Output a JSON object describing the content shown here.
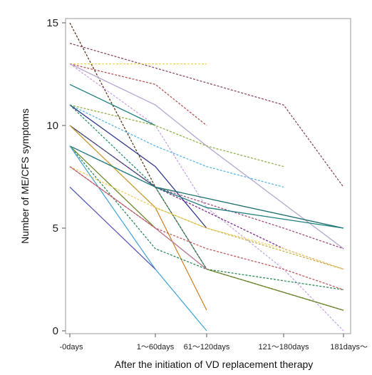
{
  "chart_data": {
    "type": "line",
    "title": "",
    "xlabel": "After the initiation of VD replacement therapy",
    "ylabel": "Number of ME/CFS symptoms",
    "categories": [
      "-0days",
      "1～60days",
      "61～120days",
      "121～180days",
      "181days～"
    ],
    "ylim": [
      0,
      15
    ],
    "yticks": [
      0,
      5,
      10,
      15
    ],
    "grid": false,
    "legend": "none",
    "series": [
      {
        "values": [
          15,
          7,
          3,
          null,
          1
        ],
        "color": "#5a3a1a",
        "dashed": true
      },
      {
        "values": [
          14,
          null,
          null,
          11,
          7
        ],
        "color": "#8a4a6a",
        "dashed": true
      },
      {
        "values": [
          13,
          13,
          13,
          null,
          null
        ],
        "color": "#f3d44a",
        "dashed": true
      },
      {
        "values": [
          13,
          12,
          10,
          null,
          null
        ],
        "color": "#b85450",
        "dashed": true
      },
      {
        "values": [
          13,
          11,
          9,
          null,
          4
        ],
        "color": "#b7a7cf",
        "dashed": false
      },
      {
        "values": [
          13,
          10,
          6,
          3,
          0
        ],
        "color": "#c9a5e6",
        "dashed": true
      },
      {
        "values": [
          12,
          10,
          null,
          null,
          null
        ],
        "color": "#1d7f7f",
        "dashed": false
      },
      {
        "values": [
          11,
          10,
          9,
          8,
          null
        ],
        "color": "#8fb24a",
        "dashed": true
      },
      {
        "values": [
          11,
          9,
          8,
          7,
          null
        ],
        "color": "#58b7e8",
        "dashed": true
      },
      {
        "values": [
          11,
          8,
          5,
          null,
          null
        ],
        "color": "#343a8c",
        "dashed": false
      },
      {
        "values": [
          11,
          7,
          3,
          null,
          null
        ],
        "color": "#2b8f6e",
        "dashed": true
      },
      {
        "values": [
          10,
          7,
          null,
          null,
          5
        ],
        "color": "#1a6e6a",
        "dashed": false
      },
      {
        "values": [
          10,
          6,
          1,
          null,
          null
        ],
        "color": "#cc8a2e",
        "dashed": false
      },
      {
        "values": [
          10,
          7,
          null,
          4,
          3
        ],
        "color": "#7a2e8a",
        "dashed": true
      },
      {
        "values": [
          10,
          6,
          5,
          null,
          3
        ],
        "color": "#c8b04a",
        "dashed": true
      },
      {
        "values": [
          9,
          7,
          null,
          5,
          4
        ],
        "color": "#a05080",
        "dashed": true
      },
      {
        "values": [
          9,
          7,
          6,
          null,
          5
        ],
        "color": "#1d7f7f",
        "dashed": false
      },
      {
        "values": [
          9,
          4,
          3,
          null,
          2
        ],
        "color": "#2e8b57",
        "dashed": true
      },
      {
        "values": [
          9,
          5,
          3,
          null,
          1
        ],
        "color": "#6c8a2e",
        "dashed": false
      },
      {
        "values": [
          9,
          3,
          0,
          null,
          null
        ],
        "color": "#4aa8d8",
        "dashed": false
      },
      {
        "values": [
          8,
          5,
          3,
          null,
          null
        ],
        "color": "#c27ba0",
        "dashed": false
      },
      {
        "values": [
          8,
          6,
          5,
          4,
          3
        ],
        "color": "#f0d060",
        "dashed": true
      },
      {
        "values": [
          8,
          5,
          4,
          3,
          2
        ],
        "color": "#c05a5a",
        "dashed": true
      },
      {
        "values": [
          7,
          3,
          null,
          null,
          null
        ],
        "color": "#5e5ab8",
        "dashed": false
      }
    ]
  }
}
